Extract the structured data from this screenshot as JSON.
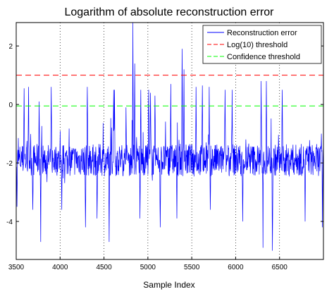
{
  "chart_data": {
    "type": "line",
    "title": "Logarithm of absolute reconstruction error",
    "xlabel": "Sample Index",
    "ylabel": "",
    "xlim": [
      3500,
      7000
    ],
    "ylim": [
      -5.3,
      2.8
    ],
    "xticks": [
      3500,
      4000,
      4500,
      5000,
      5500,
      6000,
      6500
    ],
    "yticks": [
      2,
      0,
      -2,
      -4
    ],
    "grid": {
      "x": true,
      "y": false,
      "style": "dotted"
    },
    "legend_position": "top-right",
    "series": [
      {
        "name": "Reconstruction error",
        "color": "#0000ff",
        "style": "solid",
        "baseline": -1.9,
        "noise_amplitude": 0.55,
        "peaks": [
          {
            "x": 3590,
            "y": 0.55
          },
          {
            "x": 3640,
            "y": 0.6
          },
          {
            "x": 3760,
            "y": 0.1
          },
          {
            "x": 3900,
            "y": 0.6
          },
          {
            "x": 4310,
            "y": 0.6
          },
          {
            "x": 4610,
            "y": 0.5
          },
          {
            "x": 4620,
            "y": 0.5
          },
          {
            "x": 4750,
            "y": -0.1
          },
          {
            "x": 4830,
            "y": 2.8
          },
          {
            "x": 4850,
            "y": 1.4
          },
          {
            "x": 4920,
            "y": 0.5
          },
          {
            "x": 5010,
            "y": 0.5
          },
          {
            "x": 5030,
            "y": 0.4
          },
          {
            "x": 5080,
            "y": 0.3
          },
          {
            "x": 5260,
            "y": 0.7
          },
          {
            "x": 5390,
            "y": 1.9
          },
          {
            "x": 5410,
            "y": 1.2
          },
          {
            "x": 5550,
            "y": 0.6
          },
          {
            "x": 5620,
            "y": 0.65
          },
          {
            "x": 5700,
            "y": 0.6
          },
          {
            "x": 5880,
            "y": 0.5
          },
          {
            "x": 5960,
            "y": 0.5
          },
          {
            "x": 6290,
            "y": 0.8
          },
          {
            "x": 6310,
            "y": 0.7
          },
          {
            "x": 6350,
            "y": 0.8
          },
          {
            "x": 6530,
            "y": 0.5
          }
        ],
        "troughs": [
          {
            "x": 3510,
            "y": -3.5
          },
          {
            "x": 3690,
            "y": -3.6
          },
          {
            "x": 3780,
            "y": -4.7
          },
          {
            "x": 4020,
            "y": -3.6
          },
          {
            "x": 4290,
            "y": -4.2
          },
          {
            "x": 4420,
            "y": -3.9
          },
          {
            "x": 4560,
            "y": -4.7
          },
          {
            "x": 4910,
            "y": -3.9
          },
          {
            "x": 5140,
            "y": -4.2
          },
          {
            "x": 5330,
            "y": -3.9
          },
          {
            "x": 5710,
            "y": -3.6
          },
          {
            "x": 6080,
            "y": -4.0
          },
          {
            "x": 6310,
            "y": -4.9
          },
          {
            "x": 6420,
            "y": -5.0
          },
          {
            "x": 6790,
            "y": -4.0
          },
          {
            "x": 6990,
            "y": -4.2
          }
        ]
      },
      {
        "name": "Log(10) threshold",
        "color": "#ff0000",
        "style": "dashed",
        "value": 1.0
      },
      {
        "name": "Confidence threshold",
        "color": "#00ff00",
        "style": "dashed",
        "value": -0.05
      }
    ]
  }
}
